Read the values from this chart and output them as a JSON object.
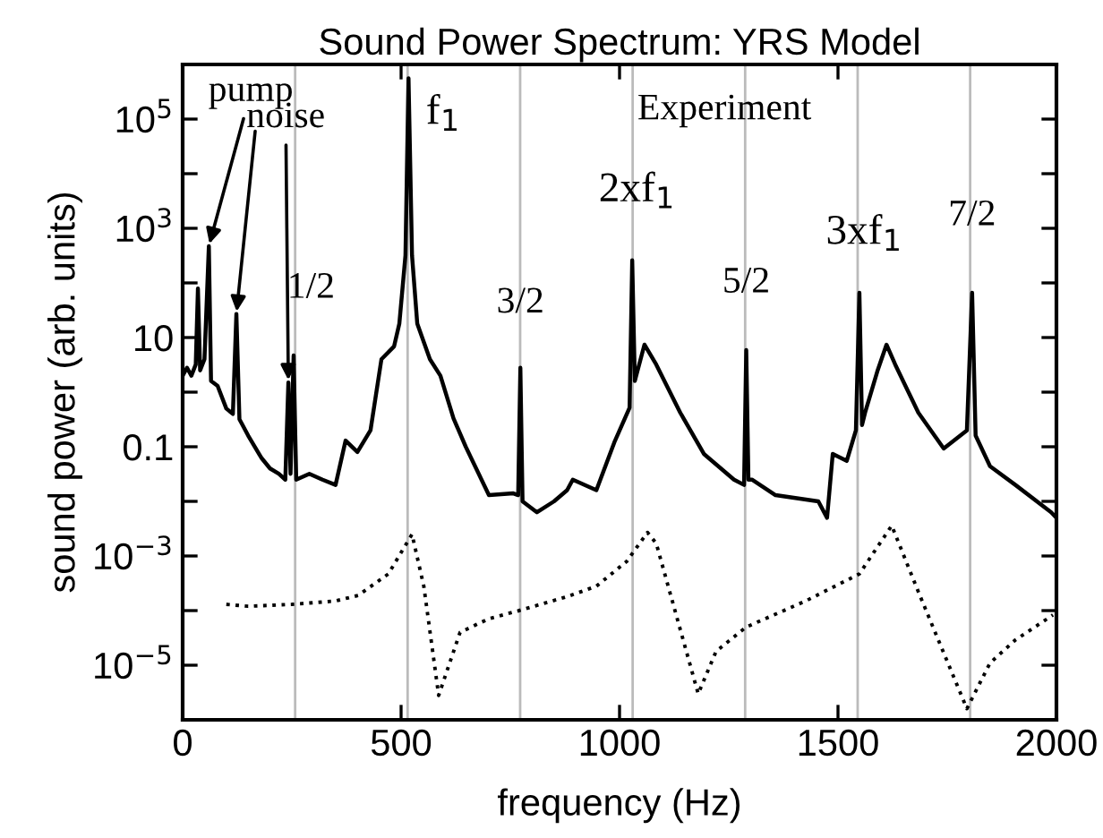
{
  "chart_data": {
    "type": "line",
    "title": "Sound Power Spectrum: YRS Model",
    "xlabel": "frequency (Hz)",
    "ylabel": "sound power (arb. units)",
    "log": "y",
    "xlim": [
      0,
      2000
    ],
    "ylim": [
      1e-06,
      1000000.0
    ],
    "xticks": [
      0,
      500,
      1000,
      1500,
      2000
    ],
    "yticks": [
      {
        "value": 100000.0,
        "label": "10$^{5}$"
      },
      {
        "value": 10000.0,
        "label": null
      },
      {
        "value": 1000.0,
        "label": "10$^{3}$"
      },
      {
        "value": 100,
        "label": null
      },
      10,
      {
        "value": 1,
        "label": null
      },
      0.1,
      {
        "value": 0.01,
        "label": null
      },
      {
        "value": 0.001,
        "label": "10$^{−3}$"
      },
      {
        "value": 0.0001,
        "label": null
      },
      {
        "value": 1e-05,
        "label": "10$^{−5}$"
      }
    ],
    "grid": false,
    "legend": false,
    "series": [
      {
        "color": "#000000",
        "line_style": "solid",
        "x": [
          0,
          10,
          20,
          30,
          35,
          40,
          50,
          60,
          65,
          80,
          100,
          115,
          123,
          130,
          150,
          180,
          200,
          220,
          235,
          242,
          247,
          254,
          260,
          290,
          320,
          350,
          373,
          400,
          430,
          455,
          484,
          496,
          510,
          517,
          525,
          537,
          566,
          590,
          620,
          648,
          701,
          757,
          768,
          773,
          778,
          811,
          850,
          880,
          893,
          947,
          988,
          1023,
          1029,
          1035,
          1057,
          1084,
          1139,
          1193,
          1262,
          1285,
          1290,
          1295,
          1303,
          1357,
          1455,
          1475,
          1488,
          1520,
          1541,
          1549,
          1555,
          1562,
          1590,
          1611,
          1631,
          1684,
          1742,
          1795,
          1807,
          1815,
          1848,
          1906,
          1988,
          2000
        ],
        "values": [
          2,
          2.8,
          2,
          3.2,
          79,
          2.5,
          4,
          470,
          1.6,
          1.3,
          0.5,
          0.4,
          27,
          0.32,
          0.16,
          0.063,
          0.04,
          0.032,
          0.025,
          1.5,
          0.032,
          4.7,
          0.025,
          0.032,
          0.025,
          0.02,
          0.13,
          0.08,
          0.2,
          4,
          6.9,
          18,
          320,
          560000,
          320,
          18,
          4,
          2,
          0.33,
          0.1,
          0.013,
          0.014,
          0.013,
          2.8,
          0.01,
          0.0063,
          0.01,
          0.016,
          0.025,
          0.016,
          0.12,
          0.52,
          260,
          1.6,
          7.4,
          3.2,
          0.42,
          0.074,
          0.025,
          0.02,
          5.9,
          0.025,
          0.025,
          0.013,
          0.01,
          0.005,
          0.074,
          0.055,
          0.2,
          66,
          0.25,
          0.42,
          2.4,
          7.4,
          3.2,
          0.42,
          0.093,
          0.2,
          66,
          0.16,
          0.044,
          0.02,
          0.0063,
          0.005
        ]
      },
      {
        "color": "#000000",
        "line_style": "dotted",
        "x": [
          100,
          150,
          250,
          350,
          402,
          471,
          525,
          552,
          586,
          635,
          701,
          770,
          880,
          947,
          1016,
          1064,
          1084,
          1180,
          1221,
          1290,
          1426,
          1549,
          1623,
          1684,
          1795,
          1848,
          1906,
          1992
        ],
        "values": [
          0.00013,
          0.00012,
          0.00013,
          0.00015,
          0.00019,
          0.00047,
          0.0025,
          0.00028,
          2.8e-06,
          4e-05,
          7.1e-05,
          0.0001,
          0.00018,
          0.00028,
          0.00079,
          0.0027,
          0.0017,
          3e-06,
          1.8e-05,
          5e-05,
          0.00015,
          0.00047,
          0.0036,
          0.00022,
          1.6e-06,
          1.1e-05,
          2.9e-05,
          8.3e-05
        ]
      }
    ],
    "ref_lines": [
      {
        "axis": "x",
        "value": 257.5,
        "color": "#bbbbbb"
      },
      {
        "axis": "x",
        "value": 515,
        "color": "#bbbbbb"
      },
      {
        "axis": "x",
        "value": 772.5,
        "color": "#bbbbbb"
      },
      {
        "axis": "x",
        "value": 1030,
        "color": "#bbbbbb"
      },
      {
        "axis": "x",
        "value": 1287.5,
        "color": "#bbbbbb"
      },
      {
        "axis": "x",
        "value": 1545,
        "color": "#bbbbbb"
      },
      {
        "axis": "x",
        "value": 1802.5,
        "color": "#bbbbbb"
      }
    ],
    "annotations": [
      {
        "text": "pump",
        "x": 60,
        "y": 470
      },
      {
        "text": "noise",
        "x": 242,
        "y": 1.5
      },
      "Experiment",
      {
        "text": "1/2",
        "x": 254,
        "y": 4.7
      },
      {
        "text": "f$_{1}$",
        "x": 517,
        "y": 560000
      },
      {
        "text": "3/2",
        "x": 773,
        "y": 2.8
      },
      {
        "text": "2xf$_{1}$",
        "x": 1029,
        "y": 260
      },
      {
        "text": "5/2",
        "x": 1290,
        "y": 5.9
      },
      {
        "text": "3xf$_{1}$",
        "x": 1549,
        "y": 66
      },
      {
        "text": "7/2",
        "x": 1807,
        "y": 66
      }
    ]
  }
}
